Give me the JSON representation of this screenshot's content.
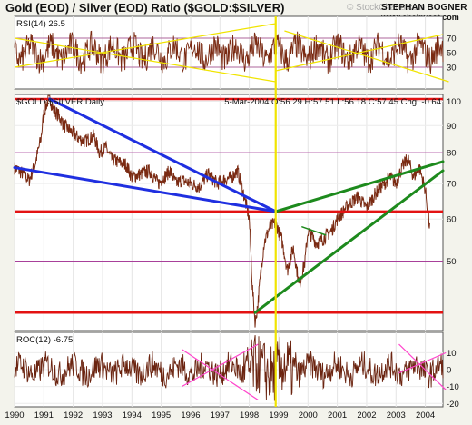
{
  "header": {
    "title": "Gold (EOD) / Silver (EOD) Ratio ($GOLD:$SILVER)",
    "watermark": "© StockCharts.com",
    "author": "STEPHAN BOGNER",
    "site": "www.ebainvest.com"
  },
  "colors": {
    "background": "#f3f3ec",
    "panel": "#ffffff",
    "price_line": "#7a2a12",
    "rsi_line": "#7a2a12",
    "roc_line": "#6b2410",
    "support_red": "#e31212",
    "trend_blue": "#1f2fe0",
    "trend_green": "#1d8a1d",
    "vertical_marker": "#f0e400",
    "rsi_guides": "#f0e400",
    "roc_guides": "#ff44cc",
    "grid_violet": "#a8409a"
  },
  "chart_data": [
    {
      "id": "rsi",
      "type": "line",
      "label": "RSI(14) 26.5",
      "ylim": [
        0,
        100
      ],
      "yticks": [
        30,
        50,
        70
      ],
      "reference_lines": [
        30,
        70
      ],
      "guides": [
        {
          "x": [
            1990.0,
            1998.9
          ],
          "y": [
            30,
            90
          ]
        },
        {
          "x": [
            1990.0,
            1998.9
          ],
          "y": [
            70,
            10
          ]
        },
        {
          "x": [
            1998.9,
            2004.6
          ],
          "y": [
            25,
            75
          ]
        },
        {
          "x": [
            1999.2,
            2004.8
          ],
          "y": [
            80,
            10
          ]
        }
      ]
    },
    {
      "id": "price",
      "type": "line",
      "label": "$GOLD:$SILVER Daily",
      "quote": "5-Mar-2004 O:56.29 H:57.51 L:56.18 C:57.45 Chg: -0.64",
      "ylim": [
        37,
        103
      ],
      "log_scale": true,
      "yticks": [
        50,
        60,
        70,
        80,
        90,
        100
      ],
      "series": [
        {
          "x": [
            1990.0,
            1990.3,
            1990.5,
            1990.7,
            1990.9,
            1991.0,
            1991.1,
            1991.2,
            1991.3,
            1991.5,
            1991.7,
            1991.9,
            1992.2,
            1992.4,
            1992.7,
            1992.9,
            1993.1,
            1993.3,
            1993.5,
            1993.8,
            1994.0,
            1994.3,
            1994.6,
            1994.9,
            1995.1,
            1995.3,
            1995.5,
            1995.7,
            1996.0,
            1996.3,
            1996.6,
            1996.9,
            1997.1,
            1997.4,
            1997.6,
            1997.8,
            1998.0,
            1998.1,
            1998.2,
            1998.3,
            1998.5,
            1998.7,
            1998.9,
            1999.1,
            1999.3,
            1999.5,
            1999.7,
            1999.9,
            2000.0,
            2000.3,
            2000.5,
            2000.8,
            2001.0,
            2001.2,
            2001.4,
            2001.7,
            2002.0,
            2002.3,
            2002.5,
            2002.8,
            2003.0,
            2003.2,
            2003.4,
            2003.6,
            2003.8,
            2004.0,
            2004.15
          ],
          "y": [
            75,
            73,
            71,
            76,
            85,
            95,
            99,
            102,
            97,
            94,
            90,
            88,
            85,
            84,
            86,
            80,
            82,
            78,
            77,
            76,
            72,
            73,
            74,
            70,
            72,
            74,
            70,
            71,
            70,
            69,
            73,
            70,
            71,
            72,
            74,
            67,
            60,
            45,
            38,
            42,
            54,
            58,
            59,
            55,
            48,
            53,
            45,
            50,
            57,
            54,
            55,
            57,
            60,
            62,
            64,
            66,
            63,
            67,
            69,
            72,
            70,
            75,
            78,
            72,
            75,
            68,
            57.45
          ]
        }
      ],
      "support_lines": [
        101,
        62,
        40
      ],
      "grid_lines": [
        80,
        50
      ],
      "trendlines": [
        {
          "color": "blue",
          "x": [
            1991.2,
            1998.9
          ],
          "y": [
            101,
            62
          ]
        },
        {
          "color": "blue",
          "x": [
            1990.0,
            1998.9
          ],
          "y": [
            75,
            62
          ]
        },
        {
          "color": "green",
          "x": [
            1998.9,
            2004.6
          ],
          "y": [
            62,
            77
          ]
        },
        {
          "color": "green",
          "x": [
            1998.2,
            2004.6
          ],
          "y": [
            40,
            74
          ]
        },
        {
          "color": "green",
          "x": [
            1999.8,
            2000.6
          ],
          "y": [
            58,
            56
          ]
        }
      ]
    },
    {
      "id": "roc",
      "type": "line",
      "label": "ROC(12) -6.75",
      "ylim": [
        -22,
        22
      ],
      "yticks": [
        -20,
        -10,
        0,
        10
      ],
      "guides": [
        {
          "x": [
            1995.7,
            1998.3
          ],
          "y": [
            -10,
            15
          ]
        },
        {
          "x": [
            1995.7,
            1998.3
          ],
          "y": [
            12,
            -18
          ]
        },
        {
          "x": [
            2003.1,
            2004.7
          ],
          "y": [
            15,
            -12
          ]
        },
        {
          "x": [
            2003.1,
            2004.7
          ],
          "y": [
            -2,
            10
          ]
        }
      ]
    }
  ],
  "x_axis": {
    "years": [
      "1990",
      "1991",
      "1992",
      "1993",
      "1994",
      "1995",
      "1996",
      "1997",
      "1998",
      "1999",
      "2000",
      "2001",
      "2002",
      "2003",
      "2004"
    ],
    "marker_year": 1998.9
  }
}
